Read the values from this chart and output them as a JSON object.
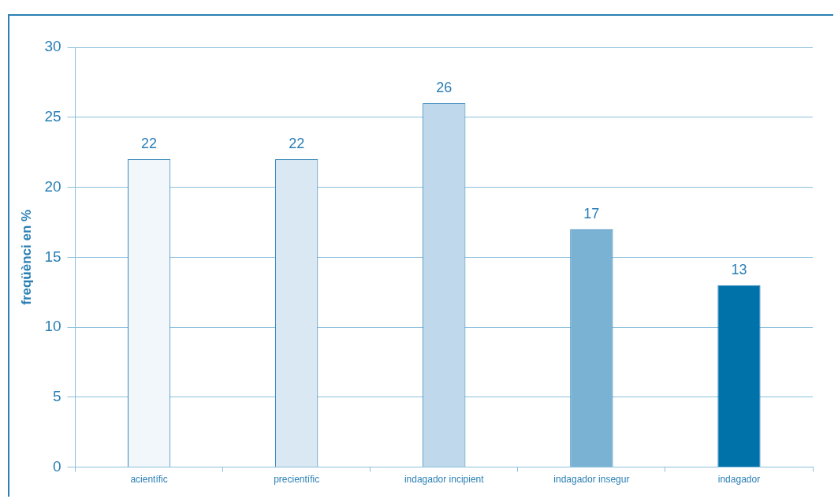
{
  "chart_data": {
    "type": "bar",
    "ylabel": "freqüènci en %",
    "categories": [
      "acientífic",
      "precientífic",
      "indagador incipient",
      "indagador insegur",
      "indagador"
    ],
    "values": [
      22,
      22,
      26,
      17,
      13
    ],
    "colors": [
      "#f2f7fb",
      "#dae8f3",
      "#c0d8eb",
      "#7ab2d4",
      "#0072aa"
    ],
    "ylim": [
      0,
      30
    ],
    "yticks": [
      0,
      5,
      10,
      15,
      20,
      25,
      30
    ],
    "grid": "y",
    "data_labels": true
  }
}
